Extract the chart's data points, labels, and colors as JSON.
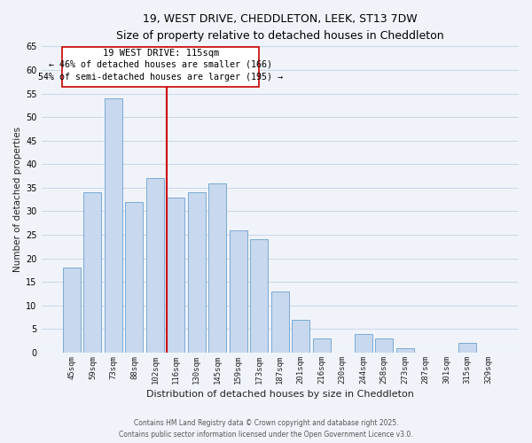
{
  "title": "19, WEST DRIVE, CHEDDLETON, LEEK, ST13 7DW",
  "subtitle": "Size of property relative to detached houses in Cheddleton",
  "xlabel": "Distribution of detached houses by size in Cheddleton",
  "ylabel": "Number of detached properties",
  "bar_labels": [
    "45sqm",
    "59sqm",
    "73sqm",
    "88sqm",
    "102sqm",
    "116sqm",
    "130sqm",
    "145sqm",
    "159sqm",
    "173sqm",
    "187sqm",
    "201sqm",
    "216sqm",
    "230sqm",
    "244sqm",
    "258sqm",
    "273sqm",
    "287sqm",
    "301sqm",
    "315sqm",
    "329sqm"
  ],
  "bar_values": [
    18,
    34,
    54,
    32,
    37,
    33,
    34,
    36,
    26,
    24,
    13,
    7,
    3,
    0,
    4,
    3,
    1,
    0,
    0,
    2,
    0
  ],
  "bar_color": "#c8d8ee",
  "bar_edge_color": "#7aaad4",
  "marker_index": 5,
  "marker_label": "19 WEST DRIVE: 115sqm",
  "annotation_line1": "← 46% of detached houses are smaller (166)",
  "annotation_line2": "54% of semi-detached houses are larger (195) →",
  "vline_color": "#cc0000",
  "box_edge_color": "#cc0000",
  "ylim": [
    0,
    65
  ],
  "yticks": [
    0,
    5,
    10,
    15,
    20,
    25,
    30,
    35,
    40,
    45,
    50,
    55,
    60,
    65
  ],
  "footer1": "Contains HM Land Registry data © Crown copyright and database right 2025.",
  "footer2": "Contains public sector information licensed under the Open Government Licence v3.0.",
  "bg_color": "#f0f4fa",
  "grid_color": "#ccd8e8"
}
